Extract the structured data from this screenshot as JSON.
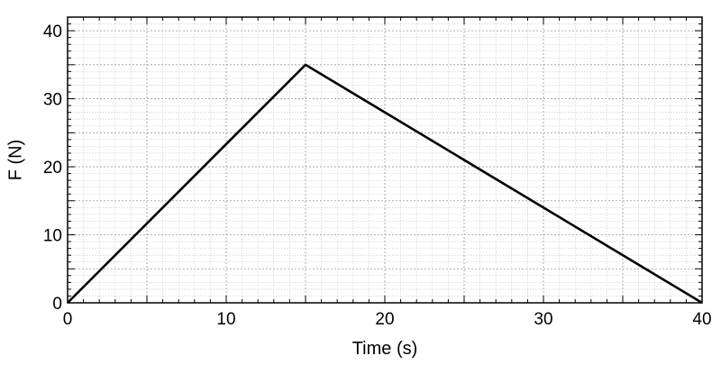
{
  "chart_data": {
    "type": "line",
    "xlabel": "Time (s)",
    "ylabel": "F (N)",
    "xlim": [
      0,
      40
    ],
    "ylim": [
      0,
      42
    ],
    "x_ticks": [
      0,
      10,
      20,
      30,
      40
    ],
    "y_ticks": [
      0,
      10,
      20,
      30,
      40
    ],
    "grid": true,
    "series": [
      {
        "x": [
          0,
          15,
          40
        ],
        "y": [
          0,
          35,
          0
        ],
        "color": "#000000"
      }
    ]
  }
}
